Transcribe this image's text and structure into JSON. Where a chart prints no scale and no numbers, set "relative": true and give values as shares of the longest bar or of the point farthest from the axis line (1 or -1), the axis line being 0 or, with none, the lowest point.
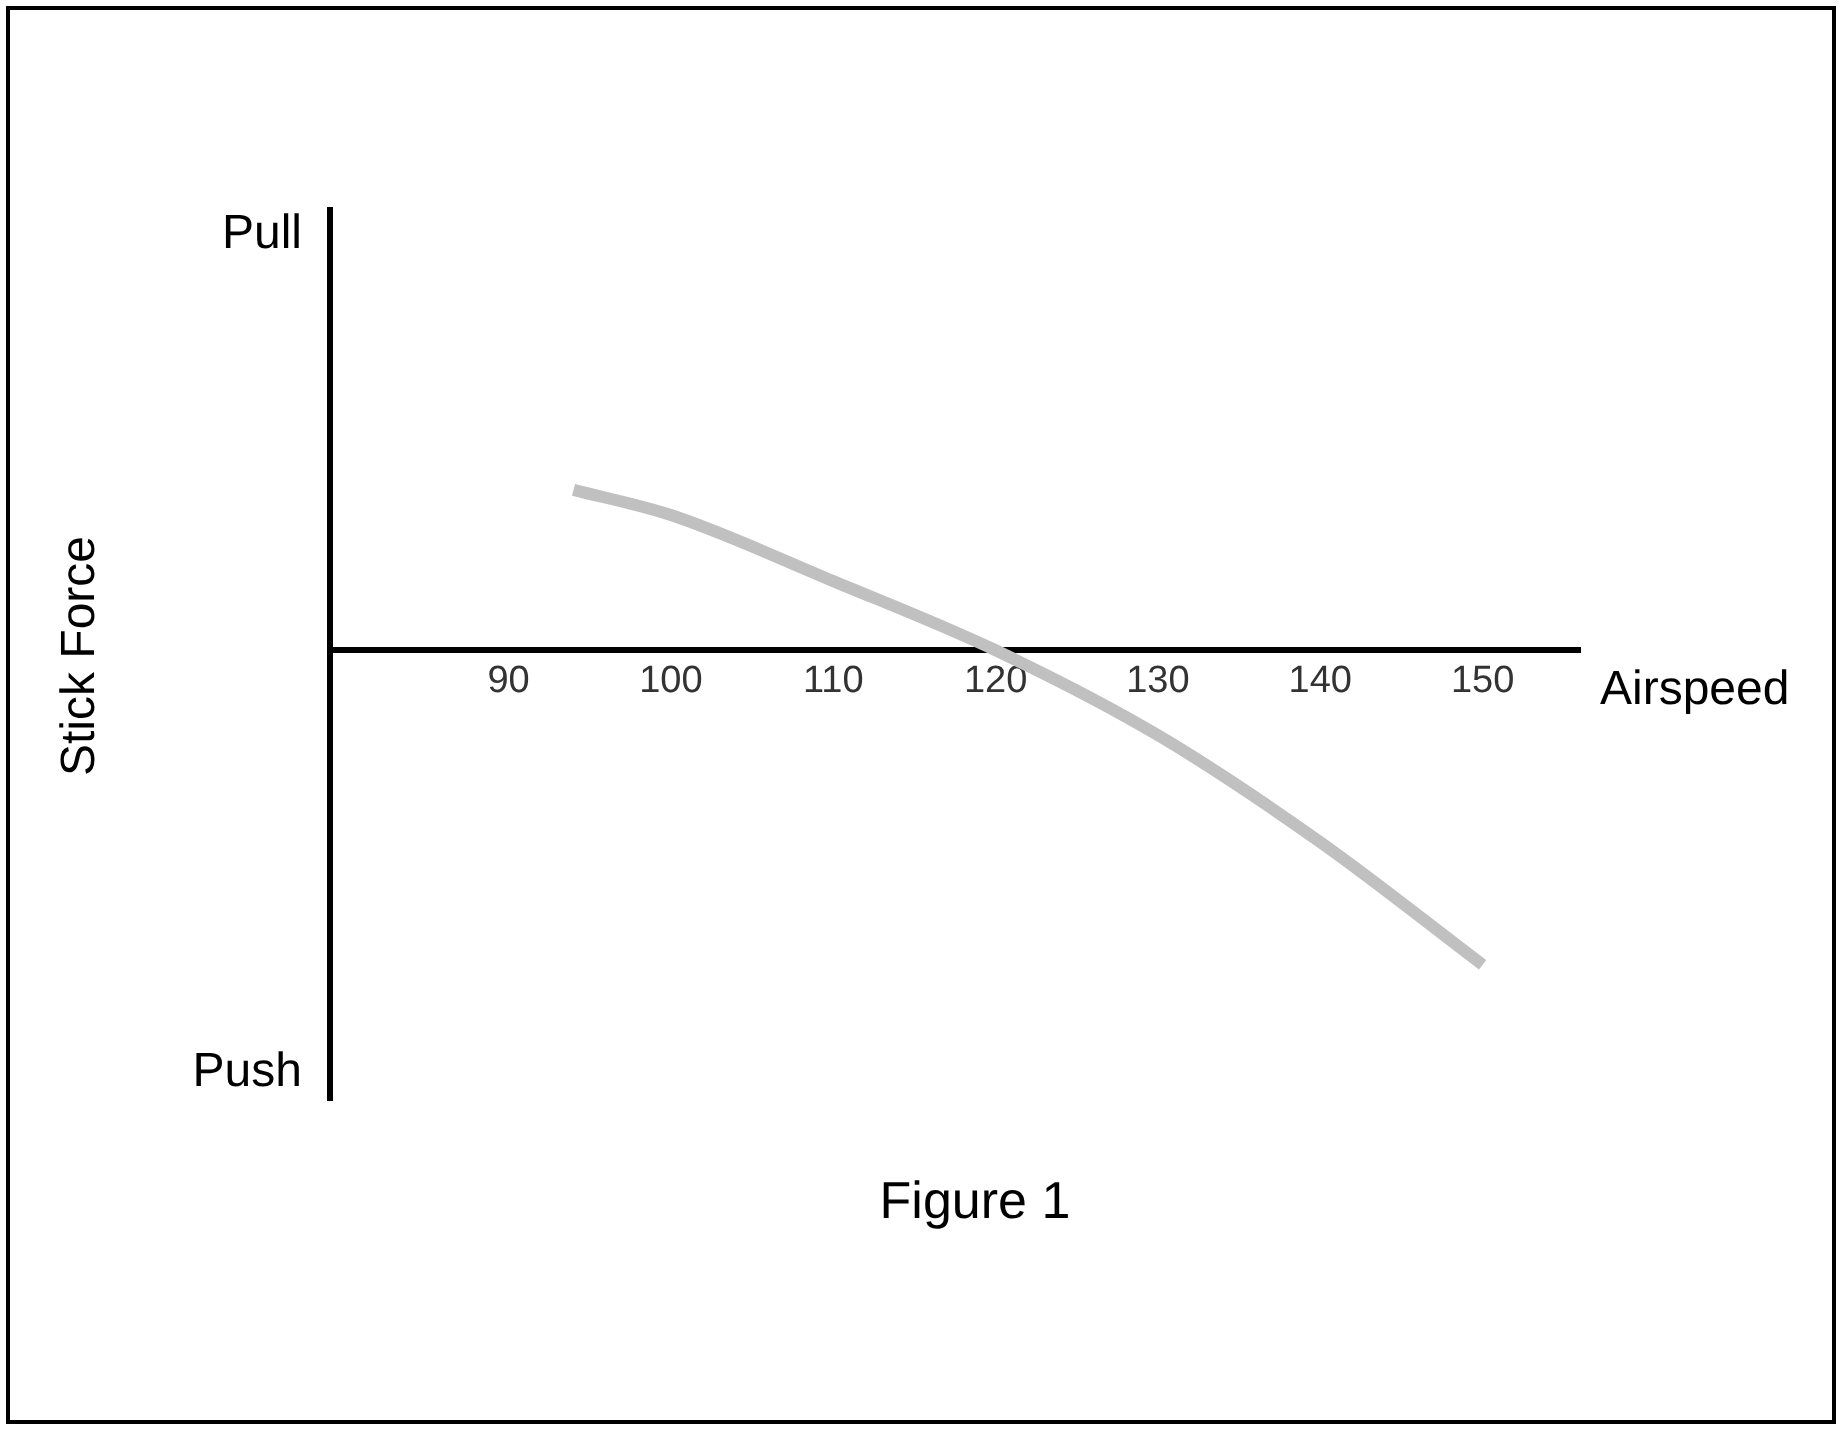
{
  "chart_data": {
    "type": "line",
    "title": "Figure 1",
    "xlabel": "Airspeed",
    "ylabel": "Stick Force",
    "annotations": [
      "Pull",
      "Push"
    ],
    "relative": true,
    "x": [
      94,
      100,
      110,
      120,
      130,
      140,
      150
    ],
    "xlim": [
      79,
      156
    ],
    "xticks": [
      90,
      100,
      110,
      120,
      130,
      140,
      150
    ],
    "series": [
      {
        "color": "#c0c0c0",
        "values": [
          0.51,
          0.43,
          0.22,
          0,
          -0.27,
          -0.61,
          -1
        ]
      }
    ],
    "grid": false,
    "legend": false,
    "marker": "none",
    "line_style": "solid"
  }
}
